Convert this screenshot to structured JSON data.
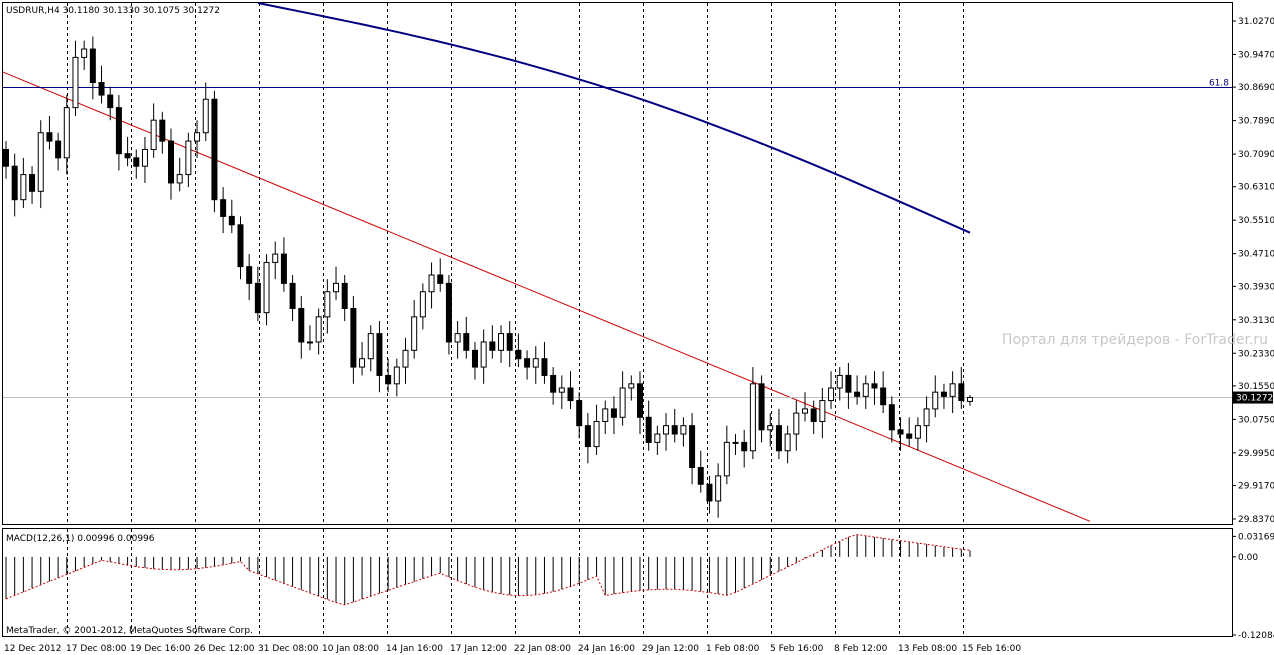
{
  "header": {
    "symbol": "USDRUR,H4",
    "ohlc": "30.1180 30.1330 30.1075 30.1272"
  },
  "watermark": "Портал для трейдеров - ForTrader.ru",
  "copyright": "MetaTrader, © 2001-2012, MetaQuotes Software Corp.",
  "colors": {
    "candles": "#000000",
    "moving_average": "#000080",
    "trendline": "#cc0000",
    "macd_signal": "#cc0000",
    "fibo_line": "#000080",
    "grid": "#000000"
  },
  "price_axis": {
    "ticks": [
      "31.0270",
      "30.9470",
      "30.8690",
      "30.7890",
      "30.7090",
      "30.6310",
      "30.5510",
      "30.4710",
      "30.3930",
      "30.3130",
      "30.2330",
      "30.1550",
      "30.0750",
      "29.9950",
      "29.9170",
      "29.8370"
    ],
    "current_price": "30.1272"
  },
  "macd_axis": {
    "ticks": [
      "0.03169",
      "0.00",
      "-0.12084"
    ]
  },
  "time_axis": {
    "labels": [
      "12 Dec 2012",
      "17 Dec 08:00",
      "19 Dec 16:00",
      "26 Dec 12:00",
      "31 Dec 08:00",
      "10 Jan 08:00",
      "14 Jan 16:00",
      "17 Jan 12:00",
      "22 Jan 08:00",
      "24 Jan 16:00",
      "29 Jan 12:00",
      "1 Feb 08:00",
      "5 Feb 16:00",
      "8 Feb 12:00",
      "13 Feb 08:00",
      "15 Feb 16:00"
    ]
  },
  "fibo": {
    "label": "61.8",
    "price": 30.868
  },
  "chart_data": [
    {
      "type": "candlestick",
      "symbol": "USDRUR",
      "timeframe": "H4",
      "last": {
        "open": 30.118,
        "high": 30.133,
        "low": 30.1075,
        "close": 30.1272
      },
      "ylim": [
        29.825,
        31.07
      ],
      "x_start": "12 Dec 2012",
      "x_end": "15 Feb 16:00",
      "closes": [
        30.68,
        30.6,
        30.66,
        30.62,
        30.76,
        30.74,
        30.7,
        30.82,
        30.94,
        30.96,
        30.88,
        30.85,
        30.82,
        30.71,
        30.7,
        30.68,
        30.72,
        30.79,
        30.74,
        30.64,
        30.66,
        30.74,
        30.76,
        30.84,
        30.6,
        30.56,
        30.54,
        30.44,
        30.4,
        30.33,
        30.45,
        30.47,
        30.4,
        30.34,
        30.26,
        30.26,
        30.32,
        30.38,
        30.4,
        30.34,
        30.2,
        30.22,
        30.28,
        30.18,
        30.16,
        30.2,
        30.24,
        30.32,
        30.38,
        30.42,
        30.4,
        30.26,
        30.28,
        30.24,
        30.2,
        30.26,
        30.24,
        30.28,
        30.24,
        30.22,
        30.2,
        30.22,
        30.18,
        30.14,
        30.15,
        30.12,
        30.06,
        30.01,
        30.07,
        30.1,
        30.08,
        30.15,
        30.16,
        30.08,
        30.02,
        30.04,
        30.06,
        30.04,
        30.06,
        29.96,
        29.92,
        29.88,
        29.94,
        30.02,
        30.02,
        30.0,
        30.16,
        30.05,
        30.06,
        30.0,
        30.04,
        30.09,
        30.1,
        30.07,
        30.12,
        30.15,
        30.18,
        30.14,
        30.13,
        30.16,
        30.15,
        30.11,
        30.05,
        30.04,
        30.03,
        30.06,
        30.1,
        30.14,
        30.13,
        30.16,
        30.12,
        30.13
      ],
      "trendline": {
        "from": {
          "x": "12 Dec 2012",
          "price": 30.905
        },
        "to": {
          "x": "15 Feb 16:00",
          "price": 29.95
        }
      },
      "moving_average": {
        "start_price": 31.07,
        "end_price": 30.521
      }
    },
    {
      "type": "bar",
      "title": "MACD(12,26,1) 0.00996 0.00996",
      "ylim": [
        -0.12084,
        0.04
      ],
      "first_value": -0.065,
      "last_value": 0.00996
    }
  ]
}
